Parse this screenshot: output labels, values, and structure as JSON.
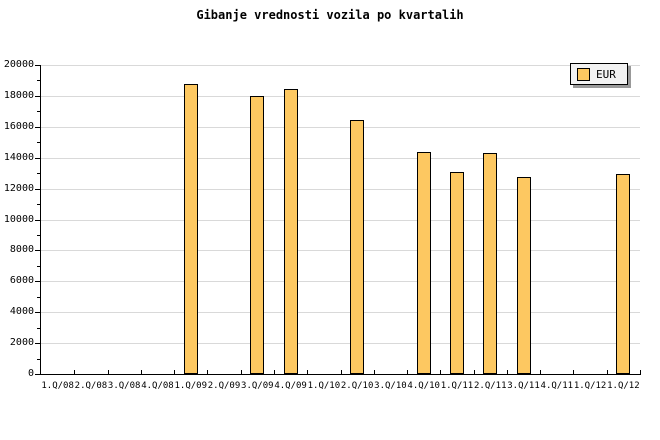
{
  "title": "Gibanje vrednosti vozila po kvartalih",
  "legend": {
    "label": "EUR"
  },
  "colors": {
    "bar_fill": "#FDC861",
    "bar_border": "#000000",
    "grid": "#D9D9D9",
    "axis": "#000000",
    "legend_bg": "#F2F2F2",
    "legend_shadow": "#999999",
    "background": "#FFFFFF"
  },
  "chart_data": {
    "type": "bar",
    "title": "Gibanje vrednosti vozila po kvartalih",
    "categories": [
      "1.Q/08",
      "2.Q/08",
      "3.Q/08",
      "4.Q/08",
      "1.Q/09",
      "2.Q/09",
      "3.Q/09",
      "4.Q/09",
      "1.Q/10",
      "2.Q/10",
      "3.Q/10",
      "4.Q/10",
      "1.Q/11",
      "2.Q/11",
      "3.Q/11",
      "4.Q/11",
      "1.Q/12",
      "1.Q/12"
    ],
    "series": [
      {
        "name": "EUR",
        "values": [
          null,
          null,
          null,
          null,
          18700,
          null,
          17900,
          18350,
          null,
          16350,
          null,
          14300,
          13000,
          14250,
          12700,
          null,
          null,
          12900
        ]
      }
    ],
    "xlabel": "",
    "ylabel": "",
    "ylim": [
      0,
      20000
    ],
    "ytick_step": 2000,
    "minor_ytick_step": 1000,
    "y_tick_labels": [
      "0",
      "2000",
      "4000",
      "6000",
      "8000",
      "10000",
      "12000",
      "14000",
      "16000",
      "18000",
      "20000"
    ],
    "grid": true,
    "legend_position": "top-right"
  }
}
